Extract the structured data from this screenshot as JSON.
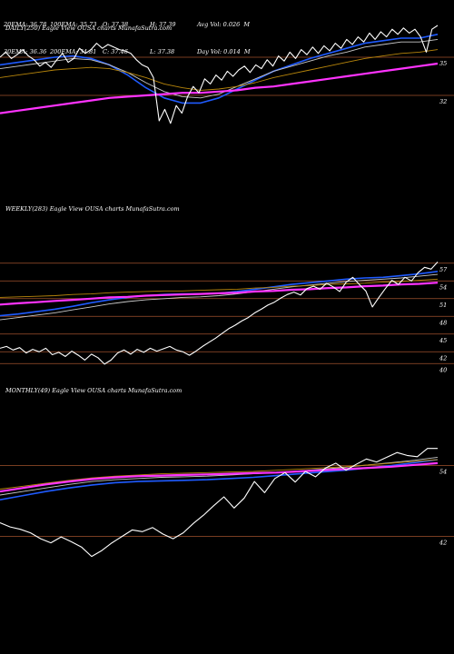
{
  "stats": {
    "rows": [
      [
        "20EMA: 36.78",
        "100EMA: 35.73",
        "O: 37.38",
        "H: 37.39",
        "Avg Vol: 0.026  M"
      ],
      [
        "30EMA: 36.36",
        "200EMA: 34.81",
        "C: 37.46",
        "L: 37.38",
        "Day Vol: 0.014  M"
      ]
    ]
  },
  "chart_data": [
    {
      "type": "line",
      "title": "DAILY(250) Eagle  View  OUSA charts MunafaSutra.com",
      "ylim": [
        29.5,
        39.5
      ],
      "hlines": [
        35,
        32
      ],
      "y_ticks": [
        "35",
        "32"
      ],
      "series": [
        {
          "role": "price",
          "color": "#ffffff",
          "values": [
            35.0,
            35.4,
            34.9,
            35.2,
            35.6,
            35.1,
            34.8,
            34.3,
            34.6,
            34.2,
            34.8,
            35.3,
            34.6,
            34.9,
            35.7,
            35.3,
            35.6,
            36.1,
            35.7,
            36.0,
            35.8,
            35.6,
            35.5,
            35.3,
            34.8,
            34.4,
            34.2,
            33.4,
            30.0,
            30.9,
            29.8,
            31.2,
            30.6,
            31.9,
            32.7,
            32.2,
            33.3,
            32.9,
            33.6,
            33.2,
            33.9,
            33.5,
            34.0,
            34.3,
            33.8,
            34.4,
            34.1,
            34.8,
            34.3,
            35.1,
            34.7,
            35.4,
            34.9,
            35.6,
            35.2,
            35.8,
            35.3,
            35.9,
            35.5,
            36.1,
            35.7,
            36.4,
            36.0,
            36.6,
            36.2,
            36.9,
            36.4,
            37.0,
            36.6,
            37.2,
            36.8,
            37.3,
            36.9,
            37.2,
            36.6,
            35.4,
            37.2,
            37.5
          ]
        },
        {
          "role": "ema",
          "color": "#1f5bff",
          "values": [
            34.4,
            34.6,
            34.8,
            35.0,
            35.1,
            34.9,
            34.4,
            33.6,
            32.6,
            31.8,
            31.4,
            31.4,
            31.8,
            32.5,
            33.2,
            33.9,
            34.4,
            34.9,
            35.3,
            35.7,
            36.1,
            36.3,
            36.5,
            36.5,
            36.8
          ]
        },
        {
          "role": "ema",
          "color": "#c8c8c8",
          "values": [
            34.1,
            34.3,
            34.5,
            34.7,
            34.9,
            34.8,
            34.4,
            33.8,
            33.0,
            32.3,
            31.9,
            31.8,
            32.1,
            32.7,
            33.3,
            33.9,
            34.3,
            34.7,
            35.1,
            35.4,
            35.8,
            36.0,
            36.2,
            36.2,
            36.4
          ]
        },
        {
          "role": "ema",
          "color": "#b8860b",
          "values": [
            33.4,
            33.6,
            33.8,
            34.0,
            34.1,
            34.2,
            34.1,
            33.8,
            33.4,
            32.9,
            32.6,
            32.4,
            32.5,
            32.7,
            33.0,
            33.4,
            33.7,
            34.0,
            34.3,
            34.6,
            34.9,
            35.1,
            35.3,
            35.4,
            35.6
          ]
        },
        {
          "role": "ema",
          "color": "#ff33ff",
          "values": [
            30.6,
            30.8,
            31.0,
            31.2,
            31.4,
            31.6,
            31.8,
            31.9,
            32.0,
            32.1,
            32.2,
            32.2,
            32.3,
            32.4,
            32.6,
            32.7,
            32.9,
            33.1,
            33.3,
            33.5,
            33.7,
            33.9,
            34.1,
            34.3,
            34.5
          ]
        }
      ]
    },
    {
      "type": "line",
      "title": "WEEKLY(283) Eagle  View  OUSA charts MunafaSutra.com",
      "ylim": [
        38.5,
        58.5
      ],
      "hlines": [
        57,
        54,
        51,
        48,
        45,
        42,
        40
      ],
      "y_ticks": [
        "57",
        "54",
        "51",
        "48",
        "45",
        "42",
        "40"
      ],
      "series": [
        {
          "role": "price",
          "color": "#ffffff",
          "values": [
            42.6,
            42.9,
            42.3,
            42.7,
            41.8,
            42.4,
            42.0,
            42.6,
            41.5,
            41.9,
            41.2,
            42.1,
            41.4,
            40.6,
            41.6,
            41.0,
            39.9,
            40.6,
            41.8,
            42.3,
            41.6,
            42.4,
            41.9,
            42.6,
            42.1,
            42.5,
            42.9,
            42.3,
            42.0,
            41.4,
            42.1,
            42.9,
            43.6,
            44.3,
            45.1,
            45.9,
            46.5,
            47.2,
            47.8,
            48.6,
            49.2,
            49.9,
            50.4,
            51.1,
            51.7,
            52.1,
            51.6,
            52.7,
            53.1,
            52.6,
            53.6,
            53.0,
            52.2,
            53.8,
            54.6,
            53.4,
            52.3,
            49.6,
            51.2,
            52.7,
            54.1,
            53.4,
            54.6,
            54.0,
            55.4,
            56.3,
            56.0,
            57.2
          ]
        },
        {
          "role": "ema",
          "color": "#1f5bff",
          "values": [
            48.1,
            48.4,
            48.8,
            49.2,
            49.7,
            50.3,
            50.8,
            51.2,
            51.5,
            51.7,
            51.8,
            51.8,
            51.9,
            52.2,
            52.6,
            53.0,
            53.4,
            53.7,
            54.0,
            54.3,
            54.5,
            54.6,
            54.9,
            55.2,
            55.6
          ]
        },
        {
          "role": "ema",
          "color": "#c8c8c8",
          "values": [
            47.4,
            47.8,
            48.2,
            48.6,
            49.1,
            49.6,
            50.1,
            50.5,
            50.8,
            51.0,
            51.2,
            51.3,
            51.5,
            51.8,
            52.2,
            52.6,
            53.0,
            53.3,
            53.6,
            53.9,
            54.1,
            54.3,
            54.5,
            54.8,
            55.1
          ]
        },
        {
          "role": "ema",
          "color": "#b8860b",
          "values": [
            51.2,
            51.3,
            51.4,
            51.5,
            51.7,
            51.8,
            52.0,
            52.1,
            52.2,
            52.3,
            52.3,
            52.4,
            52.5,
            52.6,
            52.8,
            52.9,
            53.1,
            53.2,
            53.4,
            53.5,
            53.6,
            53.8,
            53.9,
            54.1,
            54.3
          ]
        },
        {
          "role": "ema",
          "color": "#ff33ff",
          "values": [
            50.0,
            50.2,
            50.4,
            50.6,
            50.8,
            51.0,
            51.2,
            51.3,
            51.5,
            51.6,
            51.7,
            51.8,
            51.9,
            52.0,
            52.2,
            52.3,
            52.5,
            52.6,
            52.8,
            52.9,
            53.1,
            53.2,
            53.4,
            53.5,
            53.7
          ]
        }
      ]
    },
    {
      "type": "line",
      "title": "MONTHLY(49) Eagle  View  OUSA charts MunafaSutra.com",
      "ylim": [
        39,
        59
      ],
      "hlines": [
        54,
        42
      ],
      "y_ticks": [
        "54",
        "42"
      ],
      "series": [
        {
          "role": "price",
          "color": "#ffffff",
          "values": [
            44.3,
            43.6,
            43.2,
            42.6,
            41.6,
            40.9,
            41.9,
            41.1,
            40.2,
            38.6,
            39.6,
            40.9,
            42.0,
            43.1,
            42.8,
            43.5,
            42.4,
            41.6,
            42.6,
            44.2,
            45.6,
            47.2,
            48.7,
            46.8,
            48.5,
            51.3,
            49.4,
            51.8,
            52.8,
            51.2,
            53.0,
            52.1,
            53.6,
            54.4,
            53.2,
            54.2,
            55.1,
            54.6,
            55.4,
            56.2,
            55.7,
            55.5,
            56.9,
            56.9
          ]
        },
        {
          "role": "ema",
          "color": "#1f5bff",
          "values": [
            48.2,
            48.9,
            49.6,
            50.2,
            50.7,
            51.1,
            51.3,
            51.4,
            51.5,
            51.6,
            51.8,
            52.0,
            52.3,
            52.6,
            52.9,
            53.2,
            53.6,
            54.0,
            54.5,
            55.0
          ]
        },
        {
          "role": "ema",
          "color": "#c8c8c8",
          "values": [
            49.0,
            49.6,
            50.2,
            50.8,
            51.3,
            51.6,
            51.8,
            52.0,
            52.1,
            52.2,
            52.4,
            52.6,
            52.8,
            53.1,
            53.4,
            53.7,
            54.1,
            54.5,
            54.9,
            55.4
          ]
        },
        {
          "role": "ema",
          "color": "#b8860b",
          "values": [
            50.0,
            50.5,
            51.0,
            51.5,
            51.9,
            52.2,
            52.4,
            52.6,
            52.7,
            52.8,
            52.9,
            53.0,
            53.2,
            53.4,
            53.6,
            53.8,
            54.1,
            54.4,
            54.7,
            55.0
          ]
        },
        {
          "role": "ema",
          "color": "#ff33ff",
          "values": [
            49.6,
            50.2,
            50.8,
            51.3,
            51.7,
            52.0,
            52.2,
            52.3,
            52.4,
            52.5,
            52.6,
            52.7,
            52.8,
            53.0,
            53.2,
            53.4,
            53.6,
            53.8,
            54.1,
            54.4
          ]
        }
      ]
    }
  ]
}
